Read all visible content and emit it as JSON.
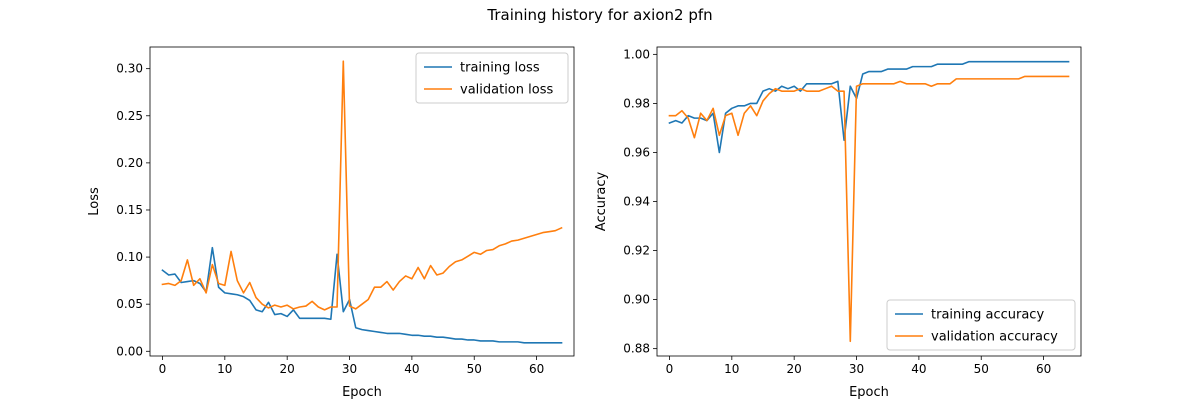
{
  "figure_title": "Training history for axion2 pfn",
  "colors": {
    "training": "#1f77b4",
    "validation": "#ff7f0e"
  },
  "chart_data": [
    {
      "type": "line",
      "title": "",
      "xlabel": "Epoch",
      "ylabel": "Loss",
      "xlim": [
        -2,
        66
      ],
      "ylim": [
        -0.005,
        0.323
      ],
      "xticks": [
        0,
        10,
        20,
        30,
        40,
        50,
        60
      ],
      "yticks": [
        0.0,
        0.05,
        0.1,
        0.15,
        0.2,
        0.25,
        0.3
      ],
      "xtick_labels": [
        "0",
        "10",
        "20",
        "30",
        "40",
        "50",
        "60"
      ],
      "ytick_labels": [
        "0.00",
        "0.05",
        "0.10",
        "0.15",
        "0.20",
        "0.25",
        "0.30"
      ],
      "grid": false,
      "legend_position": "top-right",
      "x": [
        0,
        1,
        2,
        3,
        4,
        5,
        6,
        7,
        8,
        9,
        10,
        11,
        12,
        13,
        14,
        15,
        16,
        17,
        18,
        19,
        20,
        21,
        22,
        23,
        24,
        25,
        26,
        27,
        28,
        29,
        30,
        31,
        32,
        33,
        34,
        35,
        36,
        37,
        38,
        39,
        40,
        41,
        42,
        43,
        44,
        45,
        46,
        47,
        48,
        49,
        50,
        51,
        52,
        53,
        54,
        55,
        56,
        57,
        58,
        59,
        60,
        61,
        62,
        63,
        64
      ],
      "series": [
        {
          "name": "training loss",
          "color_key": "training",
          "values": [
            0.086,
            0.081,
            0.082,
            0.073,
            0.074,
            0.075,
            0.072,
            0.063,
            0.11,
            0.068,
            0.062,
            0.061,
            0.06,
            0.058,
            0.054,
            0.044,
            0.042,
            0.052,
            0.039,
            0.04,
            0.037,
            0.044,
            0.035,
            0.035,
            0.035,
            0.035,
            0.035,
            0.034,
            0.103,
            0.042,
            0.055,
            0.025,
            0.023,
            0.022,
            0.021,
            0.02,
            0.019,
            0.019,
            0.019,
            0.018,
            0.017,
            0.017,
            0.016,
            0.016,
            0.015,
            0.015,
            0.014,
            0.013,
            0.013,
            0.012,
            0.012,
            0.011,
            0.011,
            0.011,
            0.01,
            0.01,
            0.01,
            0.01,
            0.009,
            0.009,
            0.009,
            0.009,
            0.009,
            0.009,
            0.009
          ]
        },
        {
          "name": "validation loss",
          "color_key": "validation",
          "values": [
            0.071,
            0.072,
            0.07,
            0.075,
            0.097,
            0.07,
            0.077,
            0.062,
            0.092,
            0.072,
            0.07,
            0.106,
            0.075,
            0.062,
            0.073,
            0.057,
            0.05,
            0.046,
            0.049,
            0.047,
            0.049,
            0.045,
            0.047,
            0.048,
            0.053,
            0.047,
            0.044,
            0.047,
            0.047,
            0.308,
            0.048,
            0.045,
            0.05,
            0.055,
            0.068,
            0.068,
            0.074,
            0.065,
            0.074,
            0.08,
            0.077,
            0.089,
            0.077,
            0.091,
            0.081,
            0.083,
            0.09,
            0.095,
            0.097,
            0.101,
            0.105,
            0.103,
            0.107,
            0.108,
            0.112,
            0.114,
            0.117,
            0.118,
            0.12,
            0.122,
            0.124,
            0.126,
            0.127,
            0.128,
            0.131
          ]
        }
      ]
    },
    {
      "type": "line",
      "title": "",
      "xlabel": "Epoch",
      "ylabel": "Accuracy",
      "xlim": [
        -2,
        66
      ],
      "ylim": [
        0.877,
        1.003
      ],
      "xticks": [
        0,
        10,
        20,
        30,
        40,
        50,
        60
      ],
      "yticks": [
        0.88,
        0.9,
        0.92,
        0.94,
        0.96,
        0.98,
        1.0
      ],
      "xtick_labels": [
        "0",
        "10",
        "20",
        "30",
        "40",
        "50",
        "60"
      ],
      "ytick_labels": [
        "0.88",
        "0.90",
        "0.92",
        "0.94",
        "0.96",
        "0.98",
        "1.00"
      ],
      "grid": false,
      "legend_position": "bottom-right",
      "x": [
        0,
        1,
        2,
        3,
        4,
        5,
        6,
        7,
        8,
        9,
        10,
        11,
        12,
        13,
        14,
        15,
        16,
        17,
        18,
        19,
        20,
        21,
        22,
        23,
        24,
        25,
        26,
        27,
        28,
        29,
        30,
        31,
        32,
        33,
        34,
        35,
        36,
        37,
        38,
        39,
        40,
        41,
        42,
        43,
        44,
        45,
        46,
        47,
        48,
        49,
        50,
        51,
        52,
        53,
        54,
        55,
        56,
        57,
        58,
        59,
        60,
        61,
        62,
        63,
        64
      ],
      "series": [
        {
          "name": "training accuracy",
          "color_key": "training",
          "values": [
            0.972,
            0.973,
            0.972,
            0.975,
            0.974,
            0.974,
            0.973,
            0.976,
            0.96,
            0.976,
            0.978,
            0.979,
            0.979,
            0.98,
            0.98,
            0.985,
            0.986,
            0.985,
            0.987,
            0.986,
            0.987,
            0.985,
            0.988,
            0.988,
            0.988,
            0.988,
            0.988,
            0.989,
            0.965,
            0.987,
            0.982,
            0.992,
            0.993,
            0.993,
            0.993,
            0.994,
            0.994,
            0.994,
            0.994,
            0.995,
            0.995,
            0.995,
            0.995,
            0.996,
            0.996,
            0.996,
            0.996,
            0.996,
            0.997,
            0.997,
            0.997,
            0.997,
            0.997,
            0.997,
            0.997,
            0.997,
            0.997,
            0.997,
            0.997,
            0.997,
            0.997,
            0.997,
            0.997,
            0.997,
            0.997
          ]
        },
        {
          "name": "validation accuracy",
          "color_key": "validation",
          "values": [
            0.975,
            0.975,
            0.977,
            0.974,
            0.966,
            0.976,
            0.973,
            0.978,
            0.967,
            0.975,
            0.976,
            0.967,
            0.976,
            0.979,
            0.975,
            0.981,
            0.984,
            0.986,
            0.985,
            0.985,
            0.985,
            0.986,
            0.985,
            0.985,
            0.985,
            0.986,
            0.987,
            0.985,
            0.985,
            0.883,
            0.987,
            0.988,
            0.988,
            0.988,
            0.988,
            0.988,
            0.988,
            0.989,
            0.988,
            0.988,
            0.988,
            0.988,
            0.987,
            0.988,
            0.988,
            0.988,
            0.99,
            0.99,
            0.99,
            0.99,
            0.99,
            0.99,
            0.99,
            0.99,
            0.99,
            0.99,
            0.99,
            0.991,
            0.991,
            0.991,
            0.991,
            0.991,
            0.991,
            0.991,
            0.991
          ]
        }
      ]
    }
  ]
}
